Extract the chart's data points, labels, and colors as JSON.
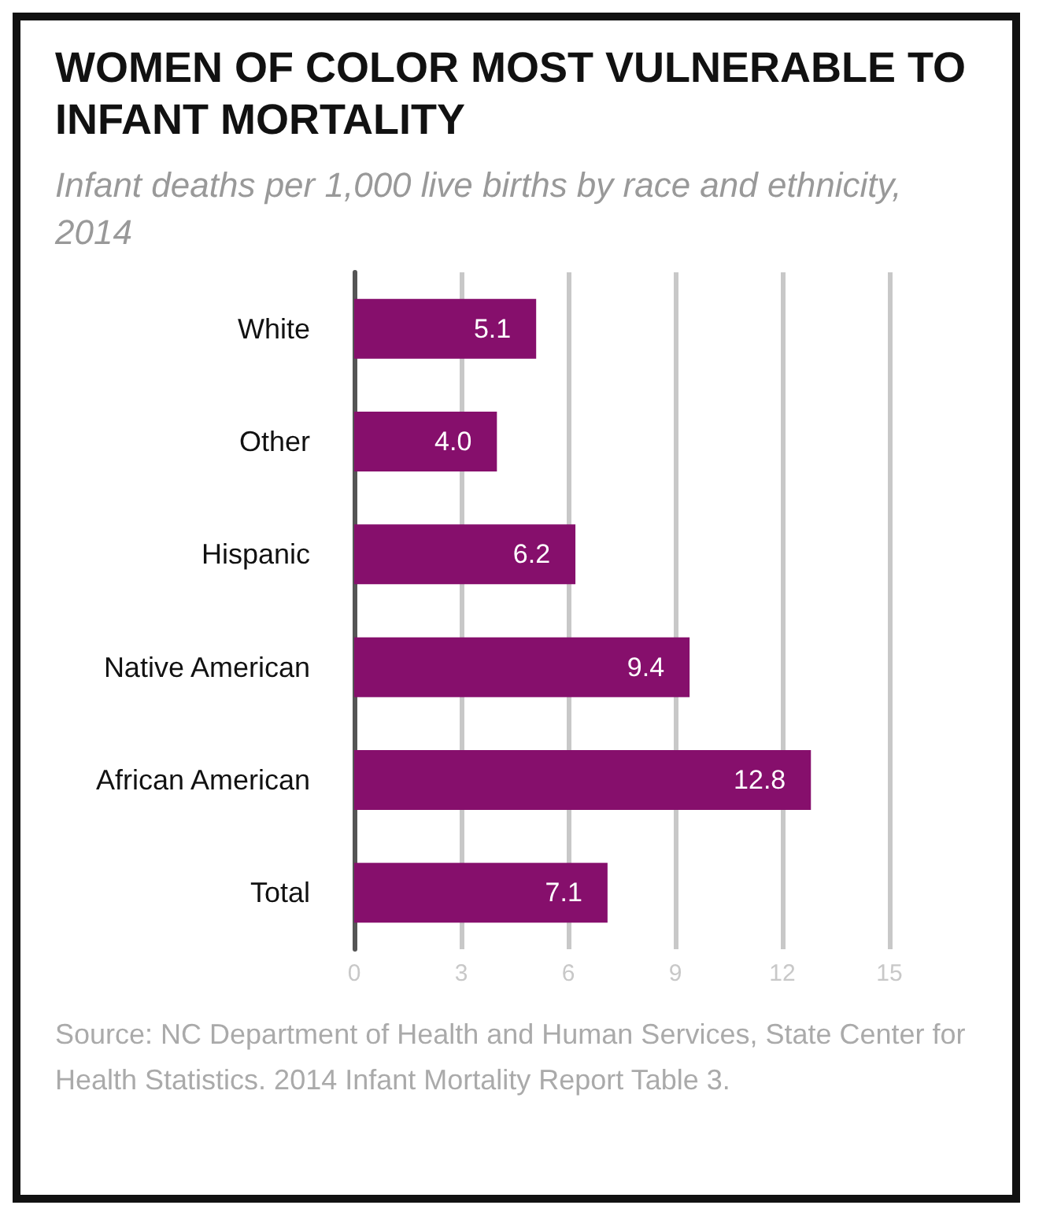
{
  "chart_data": {
    "type": "bar",
    "orientation": "horizontal",
    "title": "WOMEN OF COLOR MOST VULNERABLE TO INFANT MORTALITY",
    "subtitle": "Infant deaths per 1,000 live births by race and ethnicity, 2014",
    "categories": [
      "White",
      "Other",
      "Hispanic",
      "Native American",
      "African American",
      "Total"
    ],
    "values": [
      5.1,
      4.0,
      6.2,
      9.4,
      12.8,
      7.1
    ],
    "color": "#860f6c",
    "xlim": [
      0,
      15
    ],
    "xticks": [
      0,
      3,
      6,
      9,
      12,
      15
    ],
    "grid": "x",
    "value_labels": [
      "5.1",
      "4.0",
      "6.2",
      "9.4",
      "12.8",
      "7.1"
    ],
    "annotations": [
      "Source: NC Department of Health and Human Services, State Center for Health Statistics. 2014 Infant Mortality Report Table 3."
    ]
  }
}
